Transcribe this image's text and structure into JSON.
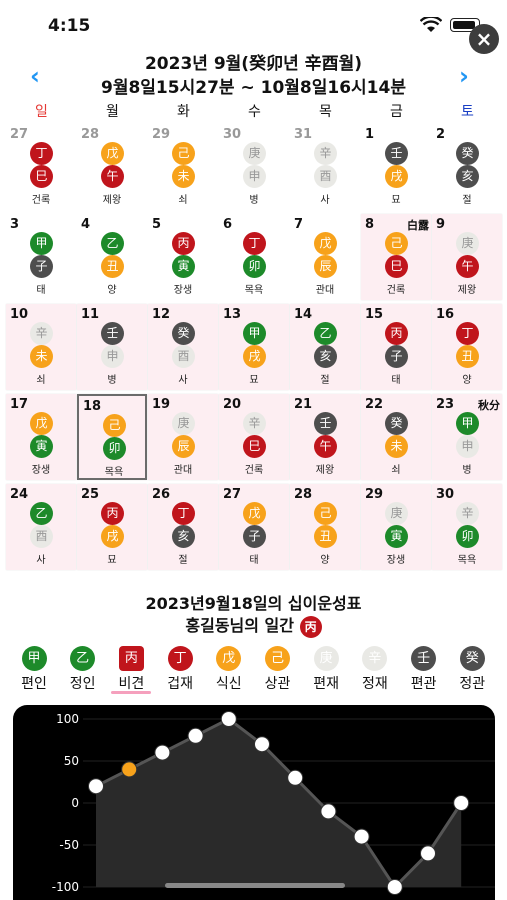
{
  "status": {
    "time": "4:15"
  },
  "close_label": "×",
  "header": {
    "title": "2023년 9월(癸卯년 辛酉월)",
    "range": "9월8일15시27분 ~ 10월8일16시14분",
    "prev": "‹",
    "next": "›"
  },
  "weekdays": [
    "일",
    "월",
    "화",
    "수",
    "목",
    "금",
    "토"
  ],
  "weekday_colors": [
    "#e53935",
    "#111",
    "#111",
    "#111",
    "#111",
    "#111",
    "#1a3fc4"
  ],
  "days": [
    {
      "n": "27",
      "dim": true,
      "s": "丁",
      "sc": "red",
      "b": "巳",
      "bc": "red",
      "l": "건록"
    },
    {
      "n": "28",
      "dim": true,
      "s": "戊",
      "sc": "orange",
      "b": "午",
      "bc": "red",
      "l": "제왕"
    },
    {
      "n": "29",
      "dim": true,
      "s": "己",
      "sc": "orange",
      "b": "未",
      "bc": "orange",
      "l": "쇠"
    },
    {
      "n": "30",
      "dim": true,
      "s": "庚",
      "sc": "light",
      "b": "申",
      "bc": "light",
      "l": "병"
    },
    {
      "n": "31",
      "dim": true,
      "s": "辛",
      "sc": "light",
      "b": "酉",
      "bc": "light",
      "l": "사"
    },
    {
      "n": "1",
      "s": "壬",
      "sc": "dark",
      "b": "戌",
      "bc": "orange",
      "l": "묘"
    },
    {
      "n": "2",
      "s": "癸",
      "sc": "dark",
      "b": "亥",
      "bc": "dark",
      "l": "절"
    },
    {
      "n": "3",
      "s": "甲",
      "sc": "green",
      "b": "子",
      "bc": "dark",
      "l": "태"
    },
    {
      "n": "4",
      "s": "乙",
      "sc": "green",
      "b": "丑",
      "bc": "orange",
      "l": "양"
    },
    {
      "n": "5",
      "s": "丙",
      "sc": "red",
      "b": "寅",
      "bc": "green",
      "l": "장생"
    },
    {
      "n": "6",
      "s": "丁",
      "sc": "red",
      "b": "卯",
      "bc": "green",
      "l": "목욕"
    },
    {
      "n": "7",
      "s": "戊",
      "sc": "orange",
      "b": "辰",
      "bc": "orange",
      "l": "관대"
    },
    {
      "n": "8",
      "pink": true,
      "term": "白露",
      "s": "己",
      "sc": "orange",
      "b": "巳",
      "bc": "red",
      "l": "건록"
    },
    {
      "n": "9",
      "pink": true,
      "s": "庚",
      "sc": "light",
      "b": "午",
      "bc": "red",
      "l": "제왕"
    },
    {
      "n": "10",
      "pink": true,
      "s": "辛",
      "sc": "light",
      "b": "未",
      "bc": "orange",
      "l": "쇠"
    },
    {
      "n": "11",
      "pink": true,
      "s": "壬",
      "sc": "dark",
      "b": "申",
      "bc": "light",
      "l": "병"
    },
    {
      "n": "12",
      "pink": true,
      "s": "癸",
      "sc": "dark",
      "b": "酉",
      "bc": "light",
      "l": "사"
    },
    {
      "n": "13",
      "pink": true,
      "s": "甲",
      "sc": "green",
      "b": "戌",
      "bc": "orange",
      "l": "묘"
    },
    {
      "n": "14",
      "pink": true,
      "s": "乙",
      "sc": "green",
      "b": "亥",
      "bc": "dark",
      "l": "절"
    },
    {
      "n": "15",
      "pink": true,
      "s": "丙",
      "sc": "red",
      "b": "子",
      "bc": "dark",
      "l": "태"
    },
    {
      "n": "16",
      "pink": true,
      "s": "丁",
      "sc": "red",
      "b": "丑",
      "bc": "orange",
      "l": "양"
    },
    {
      "n": "17",
      "pink": true,
      "s": "戊",
      "sc": "orange",
      "b": "寅",
      "bc": "green",
      "l": "장생"
    },
    {
      "n": "18",
      "pink": true,
      "selected": true,
      "s": "己",
      "sc": "orange",
      "b": "卯",
      "bc": "green",
      "l": "목욕"
    },
    {
      "n": "19",
      "pink": true,
      "s": "庚",
      "sc": "light",
      "b": "辰",
      "bc": "orange",
      "l": "관대"
    },
    {
      "n": "20",
      "pink": true,
      "s": "辛",
      "sc": "light",
      "b": "巳",
      "bc": "red",
      "l": "건록"
    },
    {
      "n": "21",
      "pink": true,
      "s": "壬",
      "sc": "dark",
      "b": "午",
      "bc": "red",
      "l": "제왕"
    },
    {
      "n": "22",
      "pink": true,
      "s": "癸",
      "sc": "dark",
      "b": "未",
      "bc": "orange",
      "l": "쇠"
    },
    {
      "n": "23",
      "pink": true,
      "term": "秋分",
      "s": "甲",
      "sc": "green",
      "b": "申",
      "bc": "light",
      "l": "병"
    },
    {
      "n": "24",
      "pink": true,
      "s": "乙",
      "sc": "green",
      "b": "酉",
      "bc": "light",
      "l": "사"
    },
    {
      "n": "25",
      "pink": true,
      "s": "丙",
      "sc": "red",
      "b": "戌",
      "bc": "orange",
      "l": "묘"
    },
    {
      "n": "26",
      "pink": true,
      "s": "丁",
      "sc": "red",
      "b": "亥",
      "bc": "dark",
      "l": "절"
    },
    {
      "n": "27",
      "pink": true,
      "s": "戊",
      "sc": "orange",
      "b": "子",
      "bc": "dark",
      "l": "태"
    },
    {
      "n": "28",
      "pink": true,
      "s": "己",
      "sc": "orange",
      "b": "丑",
      "bc": "orange",
      "l": "양"
    },
    {
      "n": "29",
      "pink": true,
      "s": "庚",
      "sc": "light",
      "b": "寅",
      "bc": "green",
      "l": "장생"
    },
    {
      "n": "30",
      "pink": true,
      "s": "辛",
      "sc": "light",
      "b": "卯",
      "bc": "green",
      "l": "목욕"
    }
  ],
  "colors": {
    "red": "#c0151c",
    "orange": "#f7a21b",
    "green": "#1d8a2a",
    "dark": "#4e4e4e",
    "light": "#e9e9e5",
    "accent": "#2196f3",
    "selected_underline": "#f5a0bd"
  },
  "section": {
    "title": "2023년9월18일의 십이운성표",
    "owner_prefix": "홍길동님의 일간",
    "owner_stem": "丙"
  },
  "stems": [
    {
      "g": "甲",
      "c": "green",
      "name": "편인"
    },
    {
      "g": "乙",
      "c": "green",
      "name": "정인"
    },
    {
      "g": "丙",
      "c": "red",
      "name": "비견",
      "active": true
    },
    {
      "g": "丁",
      "c": "red",
      "name": "겁재"
    },
    {
      "g": "戊",
      "c": "orange",
      "name": "식신"
    },
    {
      "g": "己",
      "c": "orange",
      "name": "상관"
    },
    {
      "g": "庚",
      "c": "light",
      "name": "편재"
    },
    {
      "g": "辛",
      "c": "light",
      "name": "정재"
    },
    {
      "g": "壬",
      "c": "dark",
      "name": "편관"
    },
    {
      "g": "癸",
      "c": "dark",
      "name": "정관"
    }
  ],
  "chart_data": {
    "type": "line",
    "y_ticks": [
      "100",
      "50",
      "0",
      "-50",
      "-100"
    ],
    "ylim": [
      -100,
      100
    ],
    "values": [
      20,
      40,
      60,
      80,
      100,
      70,
      30,
      -10,
      -40,
      -100,
      -60,
      0
    ],
    "highlight_index": 1,
    "colors": {
      "point_fill": "#ffffff",
      "highlight_fill": "#f7a21b",
      "line": "#555555",
      "area": "#2a2a2a",
      "grid": "#444444"
    }
  }
}
